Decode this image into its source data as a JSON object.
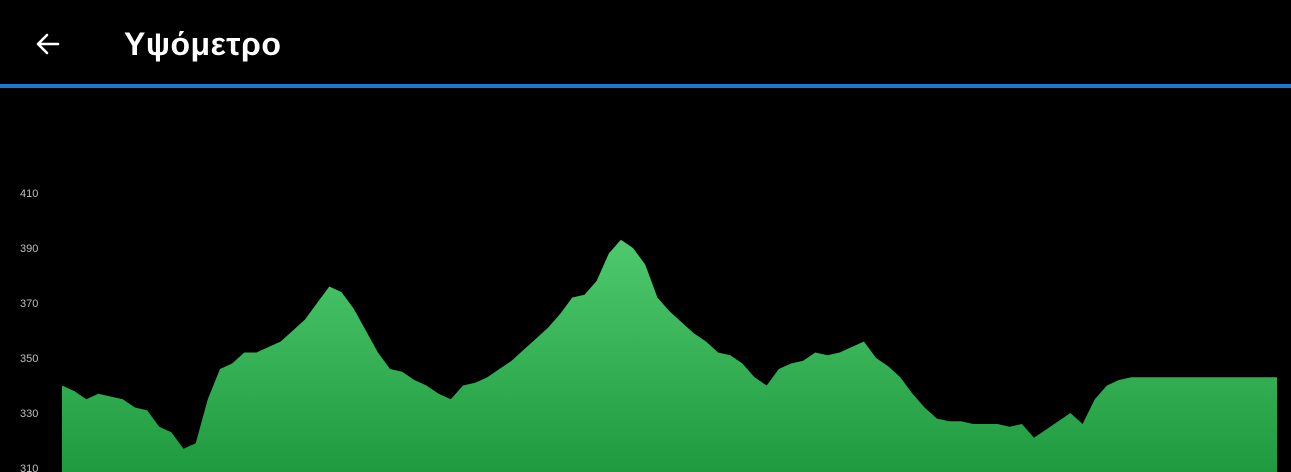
{
  "header": {
    "title": "Υψόμετρο",
    "back_icon": "arrow-left-icon"
  },
  "colors": {
    "accent": "#1e78d2",
    "area_top": "#4fc96d",
    "area_bottom": "#1f9a3f"
  },
  "chart_data": {
    "type": "area",
    "title": "",
    "xlabel": "",
    "ylabel": "",
    "ylim": [
      310,
      410
    ],
    "yticks": [
      310,
      330,
      350,
      370,
      390,
      410
    ],
    "grid": false,
    "x": [
      0,
      1,
      2,
      3,
      4,
      5,
      6,
      7,
      8,
      9,
      10,
      11,
      12,
      13,
      14,
      15,
      16,
      17,
      18,
      19,
      20,
      21,
      22,
      23,
      24,
      25,
      26,
      27,
      28,
      29,
      30,
      31,
      32,
      33,
      34,
      35,
      36,
      37,
      38,
      39,
      40,
      41,
      42,
      43,
      44,
      45,
      46,
      47,
      48,
      49,
      50,
      51,
      52,
      53,
      54,
      55,
      56,
      57,
      58,
      59,
      60,
      61,
      62,
      63,
      64,
      65,
      66,
      67,
      68,
      69,
      70,
      71,
      72,
      73,
      74,
      75,
      76,
      77,
      78,
      79,
      80,
      81,
      82,
      83,
      84,
      85,
      86,
      87,
      88,
      89,
      90,
      91,
      92,
      93,
      94,
      95,
      96,
      97,
      98,
      99,
      100
    ],
    "values": [
      340,
      338,
      335,
      337,
      336,
      335,
      332,
      331,
      325,
      323,
      317,
      319,
      335,
      346,
      348,
      352,
      352,
      354,
      356,
      360,
      364,
      370,
      376,
      374,
      368,
      360,
      352,
      346,
      345,
      342,
      340,
      337,
      335,
      340,
      341,
      343,
      346,
      349,
      353,
      357,
      361,
      366,
      372,
      373,
      378,
      388,
      393,
      390,
      384,
      372,
      367,
      363,
      359,
      356,
      352,
      351,
      348,
      343,
      340,
      346,
      348,
      349,
      352,
      351,
      352,
      354,
      356,
      350,
      347,
      343,
      337,
      332,
      328,
      327,
      327,
      326,
      326,
      326,
      325,
      326,
      321,
      324,
      327,
      330,
      326,
      335,
      340,
      342,
      343,
      343,
      343,
      343,
      343,
      343,
      343,
      343,
      343,
      343,
      343,
      343,
      343
    ]
  }
}
